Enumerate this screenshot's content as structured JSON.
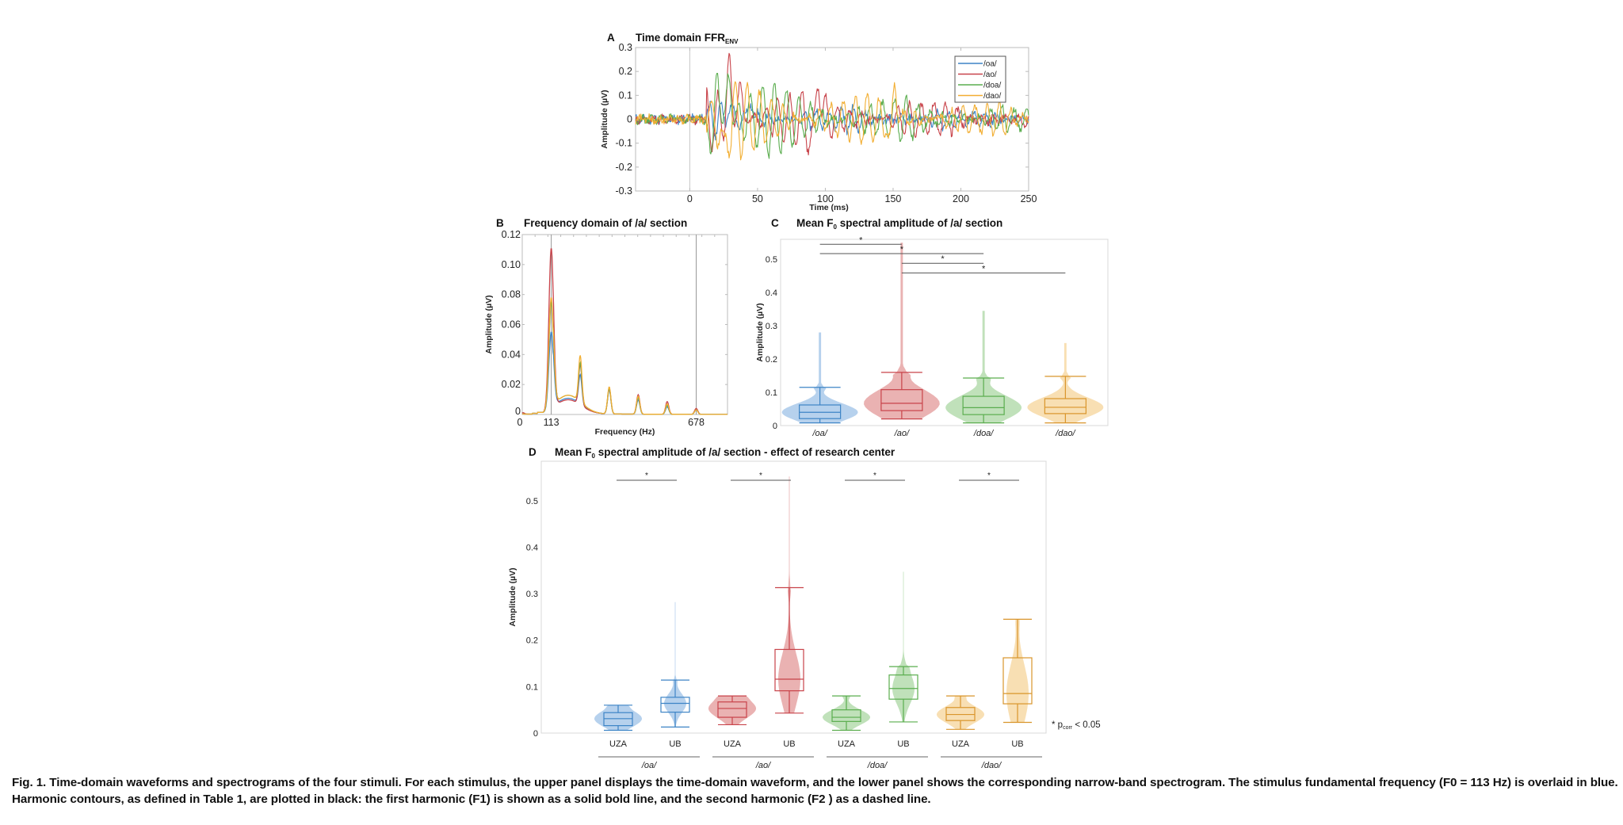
{
  "colors": {
    "oa": "#3d84c6",
    "ao": "#c8434a",
    "doa": "#5aad4e",
    "dao": "#f2ae32",
    "oa_fill": "#a9c9ea",
    "ao_fill": "#e6a5a5",
    "doa_fill": "#b5dcae",
    "dao_fill": "#f7d9a6",
    "dao_box": "#d9952b",
    "axis": "#bbbbbb",
    "sig": "#555555"
  },
  "caption": "Fig. 1. Time-domain waveforms and spectrograms of the four stimuli. For each stimulus, the upper panel displays the time-domain waveform, and the lower panel shows the corresponding narrow-band spectrogram. The stimulus fundamental frequency (F0 = 113 Hz) is overlaid in blue. Harmonic contours, as defined in Table 1, are plotted in black: the first harmonic (F1) is shown as a solid bold line, and the second harmonic (F2 ) as a dashed line.",
  "chart_data": [
    {
      "id": "A",
      "panel_letter": "A",
      "type": "line",
      "title": "Time domain FFR",
      "title_sub": "ENV",
      "xlabel": "Time (ms)",
      "ylabel": "Amplitude (µV)",
      "xlim": [
        -40,
        250
      ],
      "ylim": [
        -0.3,
        0.3
      ],
      "xticks": [
        0,
        50,
        100,
        150,
        200,
        250
      ],
      "yticks": [
        -0.3,
        -0.2,
        -0.1,
        0,
        0.1,
        0.2,
        0.3
      ],
      "ytick_labels": [
        "-0.3",
        "-0.2",
        "-0.1",
        "0",
        "0.1",
        "0.2",
        "0.3"
      ],
      "vline_x": 0,
      "legend": {
        "placement": "top-right",
        "entries": [
          "/oa/",
          "/ao/",
          "/doa/",
          "/dao/"
        ]
      },
      "series": [
        {
          "name": "/oa/",
          "color_key": "oa",
          "onset_ms": 12,
          "period_ms": 8.85,
          "amp": 0.07,
          "decay": 0.004,
          "noise": 0.015,
          "peaks": [
            [
              28,
              0.08
            ],
            [
              45,
              0.11
            ]
          ]
        },
        {
          "name": "/ao/",
          "color_key": "ao",
          "onset_ms": 12,
          "period_ms": 8.85,
          "amp": 0.2,
          "decay": 0.006,
          "noise": 0.015,
          "peaks": [
            [
              29,
              0.28
            ],
            [
              37,
              0.19
            ],
            [
              95,
              0.29
            ],
            [
              91,
              -0.17
            ]
          ]
        },
        {
          "name": "/doa/",
          "color_key": "doa",
          "onset_ms": 12,
          "period_ms": 8.85,
          "amp": 0.2,
          "decay": 0.006,
          "noise": 0.015,
          "peaks": [
            [
              20,
              0.26
            ],
            [
              29,
              0.23
            ],
            [
              16,
              -0.19
            ]
          ]
        },
        {
          "name": "/dao/",
          "color_key": "dao",
          "onset_ms": 12,
          "period_ms": 8.85,
          "amp": 0.18,
          "decay": 0.005,
          "noise": 0.015,
          "peaks": [
            [
              25,
              -0.26
            ],
            [
              151,
              0.22
            ],
            [
              148,
              -0.16
            ]
          ]
        }
      ]
    },
    {
      "id": "B",
      "panel_letter": "B",
      "type": "line",
      "title": "Frequency domain of /a/ section",
      "xlabel": "Frequency (Hz)",
      "ylabel": "Amplitude (µV)",
      "xlim": [
        0,
        800
      ],
      "ylim": [
        0,
        0.12
      ],
      "xticks": [
        0,
        113,
        678
      ],
      "yticks": [
        0,
        0.02,
        0.04,
        0.06,
        0.08,
        0.1,
        0.12
      ],
      "ytick_labels": [
        "0",
        "0.02",
        "0.04",
        "0.06",
        "0.08",
        "0.10",
        "0.12"
      ],
      "vlines": [
        113,
        678
      ],
      "harmonic_hz": [
        113,
        226,
        339,
        452,
        565,
        678
      ],
      "series": [
        {
          "name": "/oa/",
          "color_key": "oa",
          "peaks": [
            0.054,
            0.0195,
            0.016,
            0.0095,
            0.005,
            0.003
          ],
          "floor": 0.01
        },
        {
          "name": "/ao/",
          "color_key": "ao",
          "peaks": [
            0.11,
            0.027,
            0.017,
            0.013,
            0.0085,
            0.004
          ],
          "floor": 0.009
        },
        {
          "name": "/doa/",
          "color_key": "doa",
          "peaks": [
            0.074,
            0.026,
            0.017,
            0.011,
            0.006,
            0.003
          ],
          "floor": 0.012
        },
        {
          "name": "/dao/",
          "color_key": "dao",
          "peaks": [
            0.077,
            0.031,
            0.018,
            0.012,
            0.007,
            0.003
          ],
          "floor": 0.012
        }
      ]
    },
    {
      "id": "C",
      "panel_letter": "C",
      "type": "violin",
      "title": "Mean F",
      "title_sub": "0",
      "title_rest": " spectral amplitude of /a/ section",
      "ylabel": "Amplitude (µV)",
      "ylim": [
        0,
        0.56
      ],
      "yticks": [
        0,
        0.1,
        0.2,
        0.3,
        0.4,
        0.5
      ],
      "ytick_labels": [
        "0",
        "0.1",
        "0.2",
        "0.3",
        "0.4",
        "0.5"
      ],
      "categories": [
        "/oa/",
        "/ao/",
        "/doa/",
        "/dao/"
      ],
      "groups": [
        {
          "name": "/oa/",
          "color_key": "oa",
          "min": 0.008,
          "q1": 0.021,
          "median": 0.04,
          "q3": 0.062,
          "whisker_hi": 0.115,
          "max": 0.28
        },
        {
          "name": "/ao/",
          "color_key": "ao",
          "min": 0.02,
          "q1": 0.045,
          "median": 0.067,
          "q3": 0.108,
          "whisker_hi": 0.16,
          "max": 0.55
        },
        {
          "name": "/doa/",
          "color_key": "doa",
          "min": 0.008,
          "q1": 0.033,
          "median": 0.054,
          "q3": 0.088,
          "whisker_hi": 0.143,
          "max": 0.345
        },
        {
          "name": "/dao/",
          "color_key": "dao",
          "min": 0.008,
          "q1": 0.036,
          "median": 0.055,
          "q3": 0.081,
          "whisker_hi": 0.148,
          "max": 0.248
        }
      ],
      "significance": [
        {
          "from": 0,
          "to": 1,
          "y": 0.545,
          "label": "*"
        },
        {
          "from": 0,
          "to": 2,
          "y": 0.517,
          "label": "*"
        },
        {
          "from": 1,
          "to": 2,
          "y": 0.488,
          "label": "*"
        },
        {
          "from": 1,
          "to": 3,
          "y": 0.459,
          "label": "*"
        }
      ]
    },
    {
      "id": "D",
      "panel_letter": "D",
      "type": "violin",
      "title": "Mean F",
      "title_sub": "0",
      "title_rest": " spectral amplitude of /a/ section - effect of research center",
      "ylabel": "Amplitude (µV)",
      "ylim": [
        0,
        0.585
      ],
      "yticks": [
        0,
        0.1,
        0.2,
        0.3,
        0.4,
        0.5
      ],
      "ytick_labels": [
        "0",
        "0.1",
        "0.2",
        "0.3",
        "0.4",
        "0.5"
      ],
      "stimuli": [
        "/oa/",
        "/ao/",
        "/doa/",
        "/dao/"
      ],
      "centers": [
        "UZA",
        "UB"
      ],
      "groups": [
        {
          "stimulus": "/oa/",
          "center": "UZA",
          "color_key": "oa",
          "min": 0.006,
          "q1": 0.016,
          "median": 0.031,
          "q3": 0.044,
          "whisker_hi": 0.06,
          "max": 0.06
        },
        {
          "stimulus": "/oa/",
          "center": "UB",
          "color_key": "oa",
          "min": 0.013,
          "q1": 0.045,
          "median": 0.064,
          "q3": 0.077,
          "whisker_hi": 0.114,
          "max": 0.282
        },
        {
          "stimulus": "/ao/",
          "center": "UZA",
          "color_key": "ao",
          "min": 0.018,
          "q1": 0.034,
          "median": 0.053,
          "q3": 0.067,
          "whisker_hi": 0.08,
          "max": 0.08
        },
        {
          "stimulus": "/ao/",
          "center": "UB",
          "color_key": "ao",
          "min": 0.043,
          "q1": 0.091,
          "median": 0.116,
          "q3": 0.18,
          "whisker_hi": 0.313,
          "max": 0.552
        },
        {
          "stimulus": "/doa/",
          "center": "UZA",
          "color_key": "doa",
          "min": 0.006,
          "q1": 0.025,
          "median": 0.034,
          "q3": 0.05,
          "whisker_hi": 0.08,
          "max": 0.08
        },
        {
          "stimulus": "/doa/",
          "center": "UB",
          "color_key": "doa",
          "min": 0.024,
          "q1": 0.073,
          "median": 0.096,
          "q3": 0.125,
          "whisker_hi": 0.143,
          "max": 0.347
        },
        {
          "stimulus": "/dao/",
          "center": "UZA",
          "color_key": "dao",
          "min": 0.008,
          "q1": 0.027,
          "median": 0.04,
          "q3": 0.055,
          "whisker_hi": 0.08,
          "max": 0.08
        },
        {
          "stimulus": "/dao/",
          "center": "UB",
          "color_key": "dao",
          "min": 0.023,
          "q1": 0.063,
          "median": 0.085,
          "q3": 0.162,
          "whisker_hi": 0.245,
          "max": 0.245
        }
      ],
      "significance": [
        {
          "stimulus": "/oa/",
          "label": "*"
        },
        {
          "stimulus": "/ao/",
          "label": "*"
        },
        {
          "stimulus": "/doa/",
          "label": "*"
        },
        {
          "stimulus": "/dao/",
          "label": "*"
        }
      ],
      "note_prefix": "* p",
      "note_sub": "corr",
      "note_suffix": " < 0.05"
    }
  ]
}
